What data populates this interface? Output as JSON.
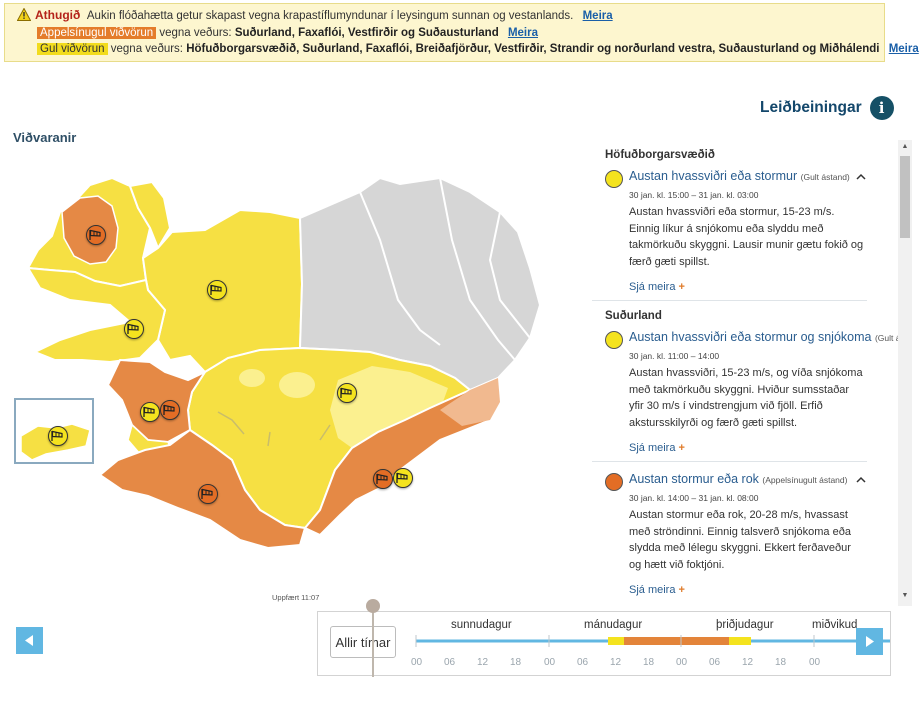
{
  "alerts": {
    "notice_label": "Athugið",
    "notice_text": "Aukin flóðahætta getur skapast vegna krapastíflumyndunar í leysingum sunnan og vestanlands.",
    "orange_label": "Appelsínugul viðvörun",
    "orange_prefix": "vegna veðurs:",
    "orange_regions": "Suðurland, Faxaflói, Vestfirðir og Suðausturland",
    "yellow_label": "Gul viðvörun",
    "yellow_prefix": "vegna veðurs:",
    "yellow_regions": "Höfuðborgarsvæðið, Suðurland, Faxaflói, Breiðafjörður, Vestfirðir, Strandir og norðurland vestra, Suðausturland og Miðhálendi",
    "more": "Meira"
  },
  "help": {
    "label": "Leiðbeiningar",
    "icon": "info-icon"
  },
  "map": {
    "title": "Viðvaranir",
    "updated": "Uppfært 11:07"
  },
  "colors": {
    "yellow": "#f4e31e",
    "orange": "#e36d25",
    "grey": "#d6d6d6",
    "light_yellow": "#fbf08f",
    "link": "#2a5d8f"
  },
  "regions": [
    {
      "name": "Höfuðborgarsvæðið",
      "warnings": [
        {
          "level": "yellow",
          "title": "Austan hvassviðri eða stormur",
          "status": "(Gult ástand)",
          "time": "30 jan. kl. 15:00 – 31 jan. kl. 03:00",
          "desc": "Austan hvassviðri eða stormur, 15-23 m/s. Einnig líkur á snjókomu eða slyddu með takmörkuðu skyggni. Lausir munir gætu fokið og færð gæti spillst.",
          "more": "Sjá meira"
        }
      ]
    },
    {
      "name": "Suðurland",
      "warnings": [
        {
          "level": "yellow",
          "title": "Austan hvassviðri eða stormur og snjókoma",
          "status": "(Gult ástand)",
          "time": "30 jan. kl. 11:00 – 14:00",
          "desc": "Austan hvassviðri, 15-23 m/s, og víða snjókoma með takmörkuðu skyggni. Hviður sumsstaðar yfir 30 m/s í vindstrengjum við fjöll. Erfið akstursskilyrði og færð gæti spillst.",
          "more": "Sjá meira"
        },
        {
          "level": "orange",
          "title": "Austan stormur eða rok",
          "status": "(Appelsínugult ástand)",
          "time": "30 jan. kl. 14:00 – 31 jan. kl. 08:00",
          "desc": "Austan stormur eða rok, 20-28 m/s, hvassast með ströndinni. Einnig talsverð snjókoma eða slydda með lélegu skyggni. Ekkert ferðaveður og hætt við foktjóni.",
          "more": "Sjá meira"
        }
      ]
    }
  ],
  "timeline": {
    "all_label": "Allir tímar",
    "days": [
      "sunnudagur",
      "mánudagur",
      "þriðjudagur",
      "miðvikud"
    ],
    "ticks": [
      "00",
      "06",
      "12",
      "18",
      "00",
      "06",
      "12",
      "18",
      "00",
      "06",
      "12",
      "18",
      "00",
      "06",
      "12"
    ]
  }
}
